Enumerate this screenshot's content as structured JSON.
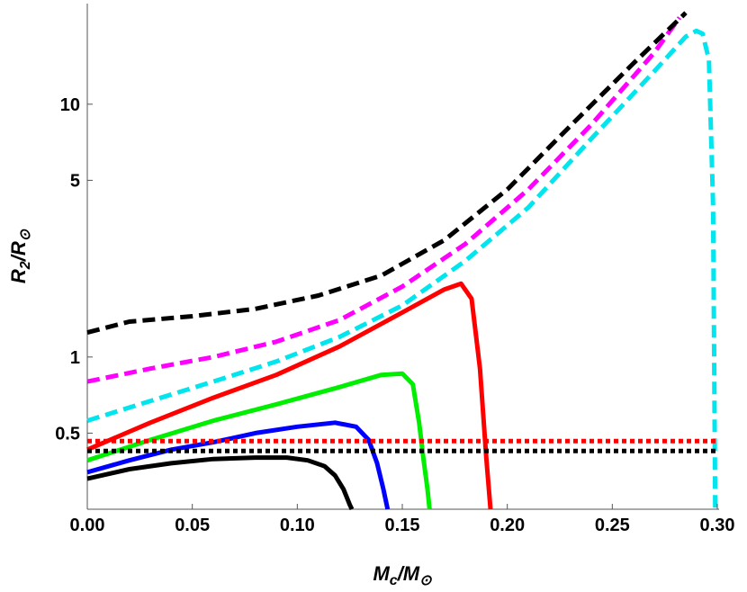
{
  "chart_data": {
    "type": "line",
    "xlabel_main": "M",
    "xlabel_sub": "c",
    "xlabel_den": "/M",
    "xlabel_sym": "⊙",
    "ylabel_main": "R",
    "ylabel_sub": "2",
    "ylabel_den": "/R",
    "ylabel_sym": "⊙",
    "x_scale": "linear",
    "y_scale": "log",
    "xlim": [
      0,
      0.3
    ],
    "ylim": [
      0.25,
      25
    ],
    "x_ticks": [
      "0.00",
      "0.05",
      "0.10",
      "0.15",
      "0.20",
      "0.25",
      "0.30"
    ],
    "x_tick_values": [
      0,
      0.05,
      0.1,
      0.15,
      0.2,
      0.25,
      0.3
    ],
    "y_ticks": [
      "0.5",
      "1",
      "5",
      "10"
    ],
    "y_tick_values": [
      0.5,
      1,
      5,
      10
    ],
    "grid": false,
    "series": [
      {
        "color": "#000000",
        "style": "solid",
        "x": [
          0,
          0.02,
          0.04,
          0.06,
          0.08,
          0.095,
          0.105,
          0.113,
          0.118,
          0.122,
          0.125,
          0.126
        ],
        "y": [
          0.33,
          0.36,
          0.38,
          0.395,
          0.4,
          0.4,
          0.39,
          0.37,
          0.34,
          0.3,
          0.26,
          0.25
        ]
      },
      {
        "color": "#0000ff",
        "style": "solid",
        "x": [
          0,
          0.02,
          0.04,
          0.06,
          0.08,
          0.1,
          0.118,
          0.128,
          0.134,
          0.138,
          0.141,
          0.143
        ],
        "y": [
          0.35,
          0.39,
          0.43,
          0.46,
          0.5,
          0.53,
          0.55,
          0.53,
          0.47,
          0.38,
          0.3,
          0.25
        ]
      },
      {
        "color": "#00ee00",
        "style": "solid",
        "x": [
          0,
          0.03,
          0.06,
          0.09,
          0.12,
          0.14,
          0.15,
          0.155,
          0.158,
          0.16,
          0.162,
          0.163
        ],
        "y": [
          0.39,
          0.47,
          0.56,
          0.65,
          0.76,
          0.85,
          0.86,
          0.78,
          0.55,
          0.4,
          0.3,
          0.25
        ]
      },
      {
        "color": "#ff0000",
        "style": "solid",
        "x": [
          0,
          0.03,
          0.06,
          0.09,
          0.12,
          0.15,
          0.17,
          0.178,
          0.183,
          0.187,
          0.19,
          0.192
        ],
        "y": [
          0.43,
          0.55,
          0.69,
          0.85,
          1.1,
          1.5,
          1.85,
          1.95,
          1.7,
          0.9,
          0.4,
          0.25
        ]
      },
      {
        "color": "#ff00ff",
        "style": "dashed",
        "x": [
          0,
          0.03,
          0.06,
          0.09,
          0.12,
          0.15,
          0.18,
          0.21,
          0.24,
          0.27,
          0.282
        ],
        "y": [
          0.8,
          0.9,
          1.0,
          1.15,
          1.4,
          1.9,
          2.8,
          4.6,
          8.3,
          16,
          22
        ]
      },
      {
        "color": "#00e5ee",
        "style": "dashed",
        "x": [
          0,
          0.03,
          0.06,
          0.09,
          0.12,
          0.15,
          0.18,
          0.21,
          0.24,
          0.27,
          0.285,
          0.29,
          0.293,
          0.296,
          0.298,
          0.299
        ],
        "y": [
          0.56,
          0.67,
          0.8,
          0.96,
          1.2,
          1.6,
          2.4,
          3.9,
          7.3,
          13.5,
          18.5,
          19.5,
          19.0,
          15,
          4,
          0.25
        ]
      },
      {
        "color": "#000000",
        "style": "dashed",
        "x": [
          0,
          0.02,
          0.05,
          0.08,
          0.11,
          0.14,
          0.17,
          0.2,
          0.23,
          0.26,
          0.285
        ],
        "y": [
          1.25,
          1.38,
          1.45,
          1.55,
          1.75,
          2.1,
          2.9,
          4.6,
          8.2,
          14.5,
          23
        ]
      },
      {
        "color": "#ff0000",
        "style": "dotted",
        "x": [
          0,
          0.3
        ],
        "y": [
          0.465,
          0.465
        ]
      },
      {
        "color": "#000000",
        "style": "dotted",
        "x": [
          0,
          0.3
        ],
        "y": [
          0.425,
          0.425
        ]
      }
    ]
  }
}
